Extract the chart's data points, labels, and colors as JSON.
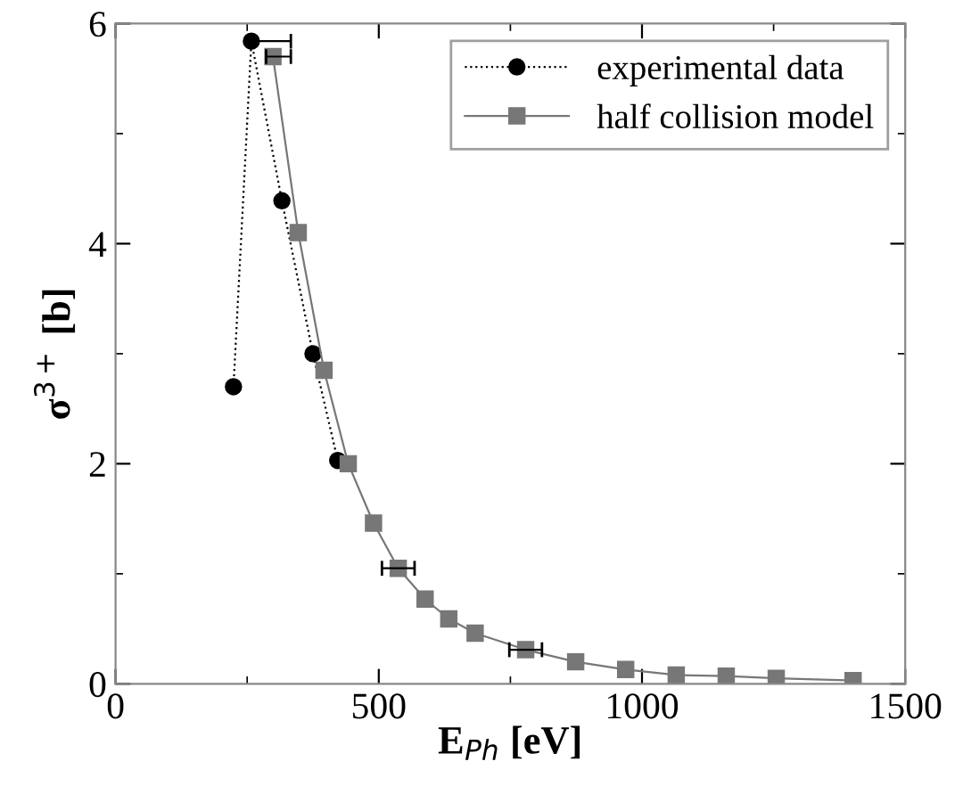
{
  "chart_data": {
    "type": "line",
    "xlabel": "E$_{Ph}$ [eV]",
    "ylabel": "σ$^{3+}$ [b]",
    "xlim": [
      0,
      1500
    ],
    "ylim": [
      0,
      6
    ],
    "xticks": [
      0,
      500,
      1000,
      1500
    ],
    "yticks": [
      0,
      2,
      4,
      6
    ],
    "grid": false,
    "legend": "top right",
    "series": [
      {
        "name": "experimental data",
        "color": "#000000",
        "marker": "circle",
        "line_style": "dotted",
        "x": [
          224,
          258,
          316,
          375,
          422
        ],
        "values": [
          2.7,
          5.84,
          4.39,
          3.0,
          2.03
        ],
        "xerrors": [
          null,
          [
            258,
            333
          ],
          null,
          null,
          null
        ]
      },
      {
        "name": "half collision model",
        "color": "#777777",
        "marker": "square",
        "line_style": "solid",
        "x": [
          299,
          347,
          396,
          442,
          490,
          537,
          588,
          633,
          683,
          779,
          874,
          969,
          1065,
          1160,
          1255,
          1401
        ],
        "values": [
          5.7,
          4.1,
          2.85,
          2.0,
          1.46,
          1.05,
          0.77,
          0.59,
          0.46,
          0.31,
          0.2,
          0.13,
          0.08,
          0.07,
          0.05,
          0.03
        ],
        "xerrors": [
          [
            286,
            333
          ],
          null,
          null,
          null,
          null,
          [
            506,
            568
          ],
          null,
          null,
          null,
          [
            748,
            810
          ],
          null,
          null,
          null,
          null,
          null,
          null
        ]
      }
    ]
  }
}
